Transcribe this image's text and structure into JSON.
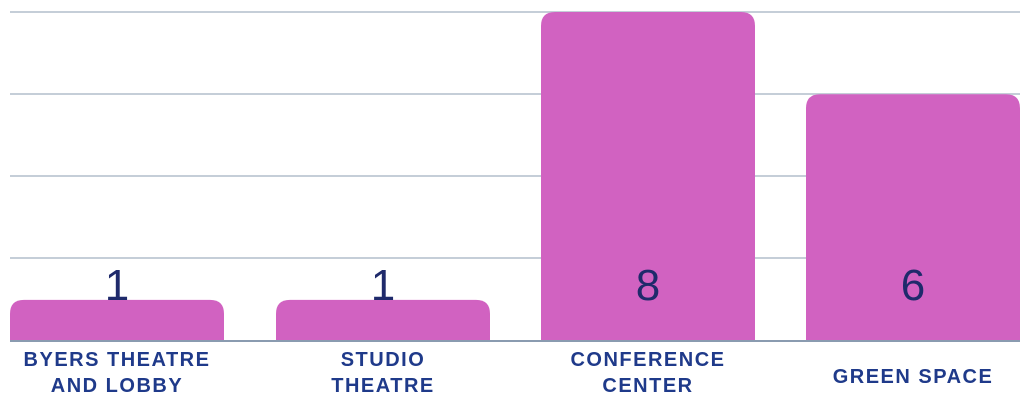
{
  "chart_data": {
    "type": "bar",
    "categories": [
      [
        "BYERS THEATRE",
        "AND LOBBY"
      ],
      [
        "STUDIO",
        "THEATRE"
      ],
      [
        "CONFERENCE",
        "CENTER"
      ],
      [
        "GREEN SPACE"
      ]
    ],
    "values": [
      1,
      1,
      8,
      6
    ],
    "value_labels": [
      "1",
      "1",
      "8",
      "6"
    ],
    "ylim": [
      0,
      8
    ],
    "grid": true,
    "colors": {
      "bar": "#d162c1",
      "grid": "#c5ced8",
      "baseline": "#8a9bb0",
      "value_text": "#1f2a6b",
      "category_text": "#1f3a8a"
    }
  }
}
